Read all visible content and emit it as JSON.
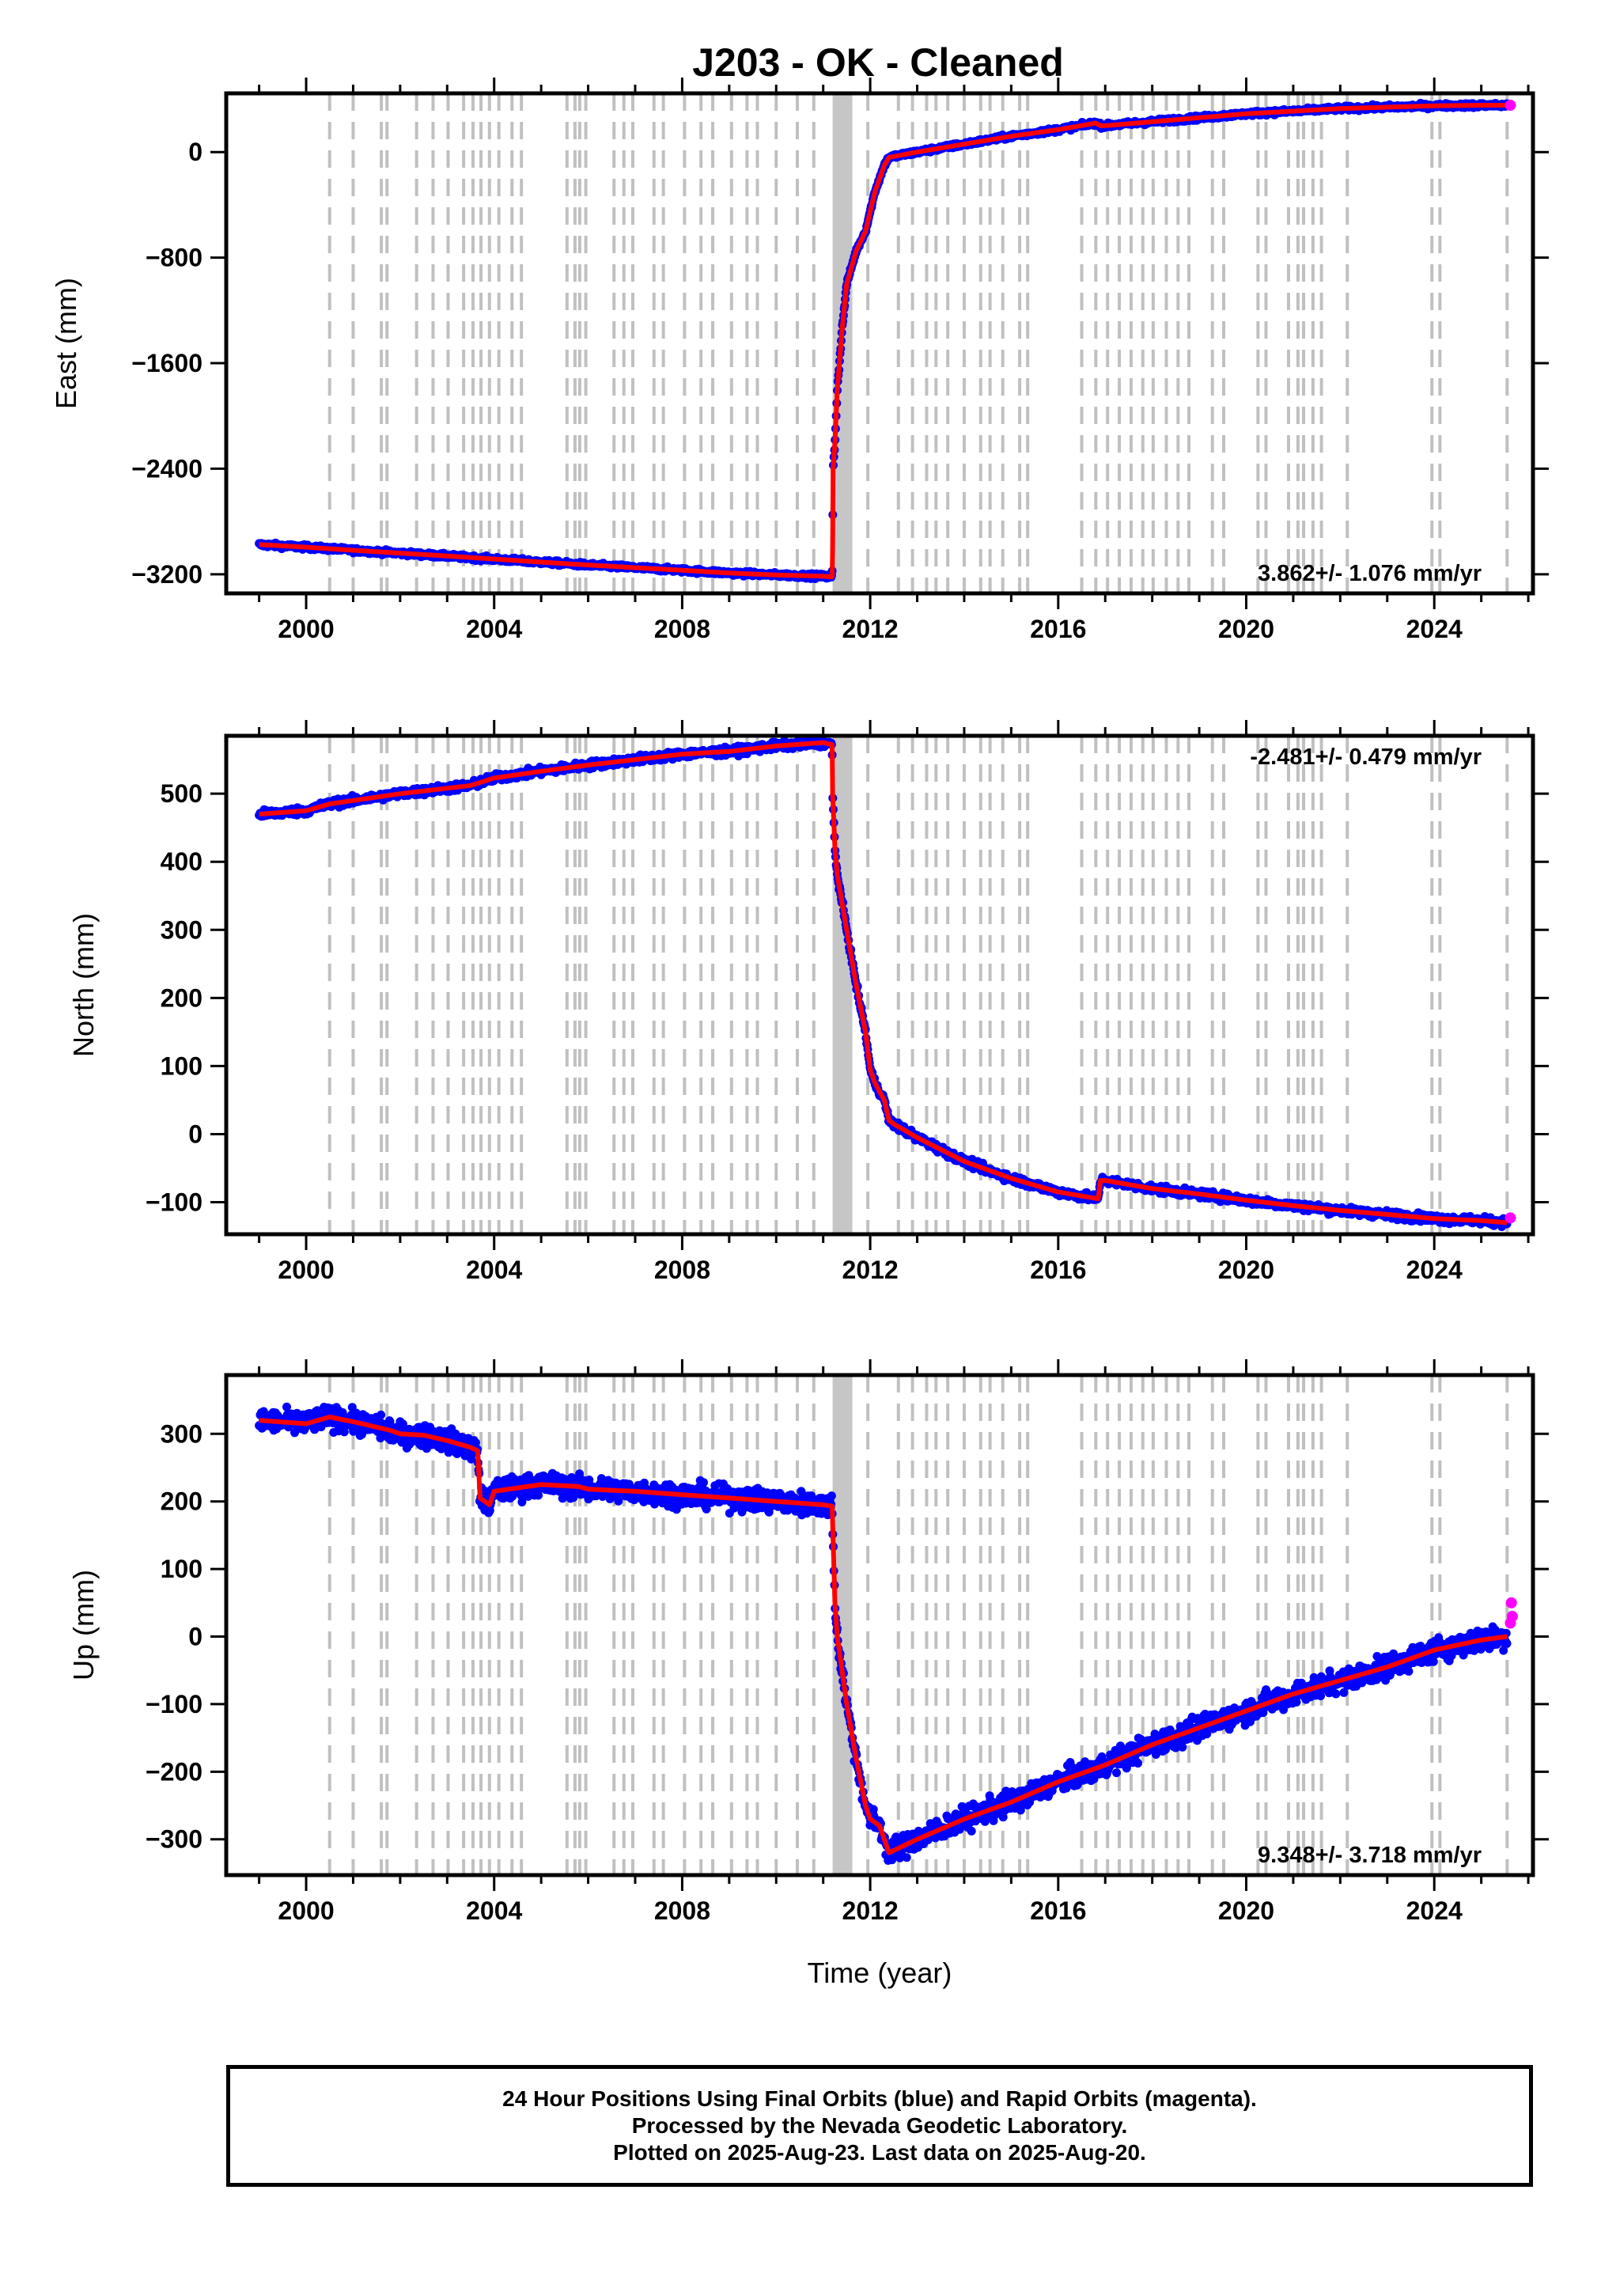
{
  "title": "J203  - OK - Cleaned",
  "x_axis_title": "Time (year)",
  "footer": {
    "line1": "24 Hour Positions Using Final Orbits (blue) and Rapid Orbits (magenta).",
    "line2": "Processed by the Nevada Geodetic Laboratory.",
    "line3": "Plotted on 2025-Aug-23. Last data on 2025-Aug-20."
  },
  "colors": {
    "final_orbits": "#0000ff",
    "rapid_orbits": "#ff00ff",
    "model": "#ff0000",
    "equipment_changes": "#c0c0c0"
  },
  "chart_data": [
    {
      "type": "scatter",
      "name": "east",
      "ylabel": "East (mm)",
      "xlim": [
        1998.3,
        2026.1
      ],
      "ylim": [
        -3345,
        445
      ],
      "xticks": [
        2000,
        2004,
        2008,
        2012,
        2016,
        2020,
        2024
      ],
      "xtick_labels": [
        "2000",
        "2004",
        "2008",
        "2012",
        "2016",
        "2020",
        "2024"
      ],
      "yticks": [
        0,
        -800,
        -1600,
        -2400,
        -3200
      ],
      "ytick_labels": [
        "0",
        "−800",
        "−1600",
        "−2400",
        "−3200"
      ],
      "rate": "3.862+/- 1.076 mm/yr",
      "rate_position": "bottom-right",
      "noise": 12,
      "series": [
        {
          "name": "final orbits + model",
          "points": [
            [
              1999.0,
              -2975
            ],
            [
              2000.0,
              -2995
            ],
            [
              2001.0,
              -3018
            ],
            [
              2002.0,
              -3040
            ],
            [
              2003.0,
              -3062
            ],
            [
              2004.0,
              -3085
            ],
            [
              2005.0,
              -3108
            ],
            [
              2006.0,
              -3130
            ],
            [
              2007.0,
              -3150
            ],
            [
              2008.0,
              -3170
            ],
            [
              2009.0,
              -3190
            ],
            [
              2010.0,
              -3205
            ],
            [
              2011.0,
              -3215
            ],
            [
              2011.19,
              -3220
            ],
            [
              2011.2,
              -3000
            ],
            [
              2011.21,
              -2400
            ],
            [
              2011.25,
              -2200
            ],
            [
              2011.3,
              -1800
            ],
            [
              2011.4,
              -1350
            ],
            [
              2011.5,
              -1000
            ],
            [
              2011.7,
              -750
            ],
            [
              2011.9,
              -600
            ],
            [
              2012.0,
              -450
            ],
            [
              2012.1,
              -300
            ],
            [
              2012.2,
              -200
            ],
            [
              2012.3,
              -100
            ],
            [
              2012.4,
              -40
            ],
            [
              2013.0,
              0
            ],
            [
              2014.0,
              60
            ],
            [
              2015.0,
              120
            ],
            [
              2016.0,
              170
            ],
            [
              2016.8,
              220
            ],
            [
              2016.9,
              200
            ],
            [
              2017.0,
              200
            ],
            [
              2018.0,
              230
            ],
            [
              2019.0,
              260
            ],
            [
              2020.0,
              290
            ],
            [
              2021.0,
              310
            ],
            [
              2022.0,
              330
            ],
            [
              2023.0,
              340
            ],
            [
              2024.0,
              350
            ],
            [
              2025.0,
              355
            ],
            [
              2025.55,
              355
            ]
          ]
        },
        {
          "name": "rapid orbits",
          "points": [
            [
              2025.62,
              355
            ]
          ]
        }
      ]
    },
    {
      "type": "scatter",
      "name": "north",
      "ylabel": "North (mm)",
      "xlim": [
        1998.3,
        2026.1
      ],
      "ylim": [
        -147,
        585
      ],
      "xticks": [
        2000,
        2004,
        2008,
        2012,
        2016,
        2020,
        2024
      ],
      "xtick_labels": [
        "2000",
        "2004",
        "2008",
        "2012",
        "2016",
        "2020",
        "2024"
      ],
      "yticks": [
        500,
        400,
        300,
        200,
        100,
        0,
        -100
      ],
      "ytick_labels": [
        "500",
        "400",
        "300",
        "200",
        "100",
        "0",
        "−100"
      ],
      "rate": "-2.481+/- 0.479 mm/yr",
      "rate_position": "top-right",
      "noise": 4,
      "series": [
        {
          "name": "final orbits + model",
          "points": [
            [
              1999.0,
              470
            ],
            [
              2000.0,
              475
            ],
            [
              2000.5,
              485
            ],
            [
              2001.0,
              490
            ],
            [
              2002.0,
              500
            ],
            [
              2003.0,
              508
            ],
            [
              2003.5,
              512
            ],
            [
              2004.0,
              523
            ],
            [
              2005.0,
              533
            ],
            [
              2006.0,
              542
            ],
            [
              2007.0,
              550
            ],
            [
              2008.0,
              558
            ],
            [
              2009.0,
              562
            ],
            [
              2010.0,
              570
            ],
            [
              2011.0,
              575
            ],
            [
              2011.19,
              572
            ],
            [
              2011.2,
              500
            ],
            [
              2011.25,
              420
            ],
            [
              2011.3,
              380
            ],
            [
              2011.4,
              340
            ],
            [
              2011.5,
              300
            ],
            [
              2011.7,
              220
            ],
            [
              2011.9,
              150
            ],
            [
              2012.0,
              95
            ],
            [
              2012.1,
              75
            ],
            [
              2012.3,
              50
            ],
            [
              2012.4,
              20
            ],
            [
              2012.5,
              15
            ],
            [
              2013.0,
              -5
            ],
            [
              2014.0,
              -40
            ],
            [
              2015.0,
              -65
            ],
            [
              2016.0,
              -85
            ],
            [
              2016.85,
              -95
            ],
            [
              2016.9,
              -68
            ],
            [
              2017.0,
              -68
            ],
            [
              2018.0,
              -80
            ],
            [
              2019.0,
              -88
            ],
            [
              2020.0,
              -97
            ],
            [
              2021.0,
              -105
            ],
            [
              2022.0,
              -112
            ],
            [
              2023.0,
              -118
            ],
            [
              2024.0,
              -124
            ],
            [
              2025.0,
              -127
            ],
            [
              2025.55,
              -130
            ]
          ]
        },
        {
          "name": "rapid orbits",
          "points": [
            [
              2025.62,
              -123
            ]
          ]
        }
      ]
    },
    {
      "type": "scatter",
      "name": "up",
      "ylabel": "Up (mm)",
      "xlim": [
        1998.3,
        2026.1
      ],
      "ylim": [
        -353,
        387
      ],
      "xticks": [
        2000,
        2004,
        2008,
        2012,
        2016,
        2020,
        2024
      ],
      "xtick_labels": [
        "2000",
        "2004",
        "2008",
        "2012",
        "2016",
        "2020",
        "2024"
      ],
      "yticks": [
        300,
        200,
        100,
        0,
        -100,
        -200,
        -300
      ],
      "ytick_labels": [
        "300",
        "200",
        "100",
        "0",
        "−100",
        "−200",
        "−300"
      ],
      "rate": "9.348+/- 3.718 mm/yr",
      "rate_position": "bottom-right",
      "noise": 12,
      "series": [
        {
          "name": "final orbits + model",
          "points": [
            [
              1999.0,
              320
            ],
            [
              2000.0,
              315
            ],
            [
              2000.5,
              325
            ],
            [
              2001.0,
              318
            ],
            [
              2001.8,
              305
            ],
            [
              2002.0,
              300
            ],
            [
              2002.5,
              298
            ],
            [
              2003.0,
              290
            ],
            [
              2003.5,
              280
            ],
            [
              2003.65,
              275
            ],
            [
              2003.7,
              205
            ],
            [
              2003.9,
              195
            ],
            [
              2004.0,
              215
            ],
            [
              2004.5,
              220
            ],
            [
              2005.0,
              225
            ],
            [
              2005.8,
              222
            ],
            [
              2006.0,
              218
            ],
            [
              2007.0,
              215
            ],
            [
              2008.0,
              210
            ],
            [
              2009.0,
              205
            ],
            [
              2010.0,
              200
            ],
            [
              2011.0,
              195
            ],
            [
              2011.19,
              193
            ],
            [
              2011.25,
              50
            ],
            [
              2011.3,
              0
            ],
            [
              2011.4,
              -50
            ],
            [
              2011.5,
              -100
            ],
            [
              2011.7,
              -180
            ],
            [
              2011.9,
              -250
            ],
            [
              2012.0,
              -270
            ],
            [
              2012.2,
              -280
            ],
            [
              2012.4,
              -320
            ],
            [
              2013.0,
              -300
            ],
            [
              2014.0,
              -270
            ],
            [
              2015.0,
              -245
            ],
            [
              2016.0,
              -215
            ],
            [
              2017.0,
              -190
            ],
            [
              2018.0,
              -160
            ],
            [
              2019.0,
              -135
            ],
            [
              2020.0,
              -110
            ],
            [
              2021.0,
              -85
            ],
            [
              2022.0,
              -65
            ],
            [
              2023.0,
              -45
            ],
            [
              2024.0,
              -20
            ],
            [
              2025.0,
              -5
            ],
            [
              2025.55,
              0
            ]
          ]
        },
        {
          "name": "rapid orbits",
          "points": [
            [
              2025.62,
              20
            ],
            [
              2025.64,
              50
            ],
            [
              2025.66,
              30
            ]
          ]
        }
      ]
    }
  ]
}
